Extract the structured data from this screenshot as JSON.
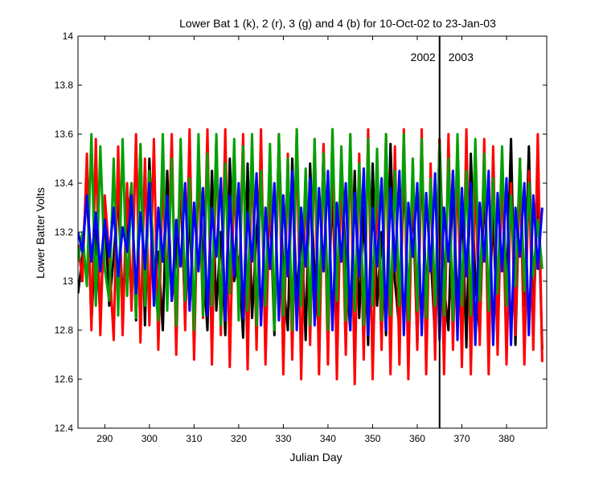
{
  "chart_data": {
    "type": "line",
    "title": "Lower Bat 1 (k), 2 (r), 3 (g) and 4 (b) for 10-Oct-02 to 23-Jan-03",
    "xlabel": "Julian Day",
    "ylabel": "Lower Batter Volts",
    "xlim": [
      284,
      389
    ],
    "ylim": [
      12.4,
      14
    ],
    "x_ticks": [
      290,
      300,
      310,
      320,
      330,
      340,
      350,
      360,
      370,
      380
    ],
    "y_ticks": [
      12.4,
      12.6,
      12.8,
      13,
      13.2,
      13.4,
      13.6,
      13.8,
      14
    ],
    "x_tick_labels": [
      "290",
      "300",
      "310",
      "320",
      "330",
      "340",
      "350",
      "360",
      "370",
      "380"
    ],
    "y_tick_labels": [
      "12.4",
      "12.6",
      "12.8",
      "13",
      "13.2",
      "13.4",
      "13.6",
      "13.8",
      "14"
    ],
    "grid": false,
    "legend": "none",
    "series": [
      {
        "color": "#000000",
        "x": [
          284.0,
          285.0,
          286.0,
          287.0,
          288.0,
          289.0,
          290.0,
          291.0,
          292.0,
          293.0,
          294.0,
          295.0,
          296.0,
          297.0,
          298.0,
          299.0,
          300.0,
          301.0,
          302.0,
          303.0,
          304.0,
          305.0,
          306.0,
          307.0,
          308.0,
          309.0,
          310.0,
          311.0,
          312.0,
          313.0,
          314.0,
          315.0,
          316.0,
          317.0,
          318.0,
          319.0,
          320.0,
          321.0,
          322.0,
          323.0,
          324.0,
          325.0,
          326.0,
          327.0,
          328.0,
          329.0,
          330.0,
          331.0,
          332.0,
          333.0,
          334.0,
          335.0,
          336.0,
          337.0,
          338.0,
          339.0,
          340.0,
          341.0,
          342.0,
          343.0,
          344.0,
          345.0,
          346.0,
          347.0,
          348.0,
          349.0,
          350.0,
          351.0,
          352.0,
          353.0,
          354.0,
          355.0,
          356.0,
          357.0,
          358.0,
          359.0,
          360.0,
          361.0,
          362.0,
          363.0,
          364.0,
          365.0,
          366.0,
          367.0,
          368.0,
          369.0,
          370.0,
          371.0,
          372.0,
          373.0,
          374.0,
          375.0,
          376.0,
          377.0,
          378.0,
          379.0,
          380.0,
          381.0,
          382.0,
          383.0,
          384.0,
          385.0,
          386.0,
          387.0,
          388.0
        ],
        "y": [
          12.95,
          13.1,
          13.42,
          12.83,
          13.21,
          12.85,
          13.3,
          12.9,
          13.1,
          13.35,
          12.92,
          13.18,
          13.4,
          12.84,
          13.55,
          12.82,
          13.5,
          13.05,
          13.12,
          12.8,
          13.45,
          12.92,
          13.1,
          13.38,
          12.85,
          13.3,
          12.78,
          13.52,
          13.08,
          12.8,
          13.45,
          12.88,
          13.2,
          12.78,
          13.5,
          13.0,
          13.1,
          12.77,
          13.48,
          12.85,
          13.2,
          13.45,
          12.82,
          13.35,
          12.78,
          13.58,
          13.0,
          12.8,
          13.5,
          12.9,
          13.25,
          12.76,
          13.48,
          13.02,
          12.78,
          13.55,
          12.86,
          13.38,
          12.77,
          13.52,
          13.05,
          12.8,
          13.45,
          12.85,
          13.3,
          12.74,
          13.48,
          12.9,
          13.2,
          12.78,
          13.56,
          13.0,
          12.8,
          13.45,
          12.9,
          13.35,
          12.74,
          13.5,
          12.95,
          13.12,
          12.76,
          13.58,
          12.98,
          12.8,
          13.45,
          12.86,
          13.32,
          12.73,
          13.52,
          13.0,
          12.78,
          13.4,
          12.84,
          13.28,
          12.75,
          13.5,
          12.95,
          13.58,
          12.74,
          13.46,
          12.9,
          13.55,
          12.8,
          13.4,
          12.72
        ]
      },
      {
        "color": "#ff0000",
        "x": [
          284.0,
          285.0,
          286.0,
          287.0,
          288.0,
          289.0,
          290.0,
          291.0,
          292.0,
          293.0,
          294.0,
          295.0,
          296.0,
          297.0,
          298.0,
          299.0,
          300.0,
          301.0,
          302.0,
          303.0,
          304.0,
          305.0,
          306.0,
          307.0,
          308.0,
          309.0,
          310.0,
          311.0,
          312.0,
          313.0,
          314.0,
          315.0,
          316.0,
          317.0,
          318.0,
          319.0,
          320.0,
          321.0,
          322.0,
          323.0,
          324.0,
          325.0,
          326.0,
          327.0,
          328.0,
          329.0,
          330.0,
          331.0,
          332.0,
          333.0,
          334.0,
          335.0,
          336.0,
          337.0,
          338.0,
          339.0,
          340.0,
          341.0,
          342.0,
          343.0,
          344.0,
          345.0,
          346.0,
          347.0,
          348.0,
          349.0,
          350.0,
          351.0,
          352.0,
          353.0,
          354.0,
          355.0,
          356.0,
          357.0,
          358.0,
          359.0,
          360.0,
          361.0,
          362.0,
          363.0,
          364.0,
          365.0,
          366.0,
          367.0,
          368.0,
          369.0,
          370.0,
          371.0,
          372.0,
          373.0,
          374.0,
          375.0,
          376.0,
          377.0,
          378.0,
          379.0,
          380.0,
          381.0,
          382.0,
          383.0,
          384.0,
          385.0,
          386.0,
          387.0,
          388.0
        ],
        "y": [
          13.15,
          13.0,
          13.52,
          12.8,
          13.58,
          12.78,
          13.35,
          13.1,
          12.76,
          13.55,
          12.78,
          13.4,
          12.88,
          13.6,
          12.75,
          13.5,
          12.82,
          13.58,
          12.72,
          13.42,
          12.95,
          13.6,
          12.7,
          13.55,
          12.8,
          13.62,
          12.68,
          13.5,
          12.85,
          13.62,
          12.66,
          13.58,
          12.78,
          13.62,
          12.65,
          13.45,
          12.9,
          13.6,
          12.64,
          13.55,
          12.72,
          13.62,
          12.66,
          13.4,
          12.82,
          13.6,
          12.62,
          13.52,
          12.68,
          13.62,
          12.6,
          13.45,
          12.74,
          13.58,
          12.62,
          13.56,
          12.66,
          13.62,
          12.6,
          13.48,
          12.7,
          13.6,
          12.58,
          13.52,
          12.68,
          13.62,
          12.6,
          13.42,
          12.72,
          13.6,
          12.62,
          13.55,
          12.66,
          13.62,
          12.6,
          13.5,
          12.72,
          13.62,
          12.62,
          13.48,
          12.68,
          13.58,
          12.62,
          13.6,
          12.72,
          13.5,
          12.65,
          13.62,
          12.62,
          13.45,
          12.74,
          13.58,
          12.62,
          13.55,
          12.7,
          13.48,
          12.66,
          13.4,
          12.78,
          13.5,
          12.66,
          13.45,
          12.72,
          13.6,
          12.67
        ]
      },
      {
        "color": "#00a000",
        "x": [
          284.0,
          285.0,
          286.0,
          287.0,
          288.0,
          289.0,
          290.0,
          291.0,
          292.0,
          293.0,
          294.0,
          295.0,
          296.0,
          297.0,
          298.0,
          299.0,
          300.0,
          301.0,
          302.0,
          303.0,
          304.0,
          305.0,
          306.0,
          307.0,
          308.0,
          309.0,
          310.0,
          311.0,
          312.0,
          313.0,
          314.0,
          315.0,
          316.0,
          317.0,
          318.0,
          319.0,
          320.0,
          321.0,
          322.0,
          323.0,
          324.0,
          325.0,
          326.0,
          327.0,
          328.0,
          329.0,
          330.0,
          331.0,
          332.0,
          333.0,
          334.0,
          335.0,
          336.0,
          337.0,
          338.0,
          339.0,
          340.0,
          341.0,
          342.0,
          343.0,
          344.0,
          345.0,
          346.0,
          347.0,
          348.0,
          349.0,
          350.0,
          351.0,
          352.0,
          353.0,
          354.0,
          355.0,
          356.0,
          357.0,
          358.0,
          359.0,
          360.0,
          361.0,
          362.0,
          363.0,
          364.0,
          365.0,
          366.0,
          367.0,
          368.0,
          369.0,
          370.0,
          371.0,
          372.0,
          373.0,
          374.0,
          375.0,
          376.0,
          377.0,
          378.0,
          379.0,
          380.0,
          381.0,
          382.0,
          383.0,
          384.0,
          385.0,
          386.0,
          387.0,
          388.0
        ],
        "y": [
          13.08,
          13.2,
          12.98,
          13.6,
          12.9,
          13.55,
          13.05,
          12.92,
          13.5,
          12.86,
          13.58,
          12.94,
          13.4,
          12.85,
          13.56,
          12.9,
          13.45,
          13.02,
          12.84,
          13.6,
          12.88,
          13.5,
          12.82,
          13.58,
          12.92,
          13.42,
          12.8,
          13.6,
          12.86,
          13.52,
          12.9,
          13.6,
          12.82,
          13.48,
          12.95,
          13.58,
          12.84,
          13.55,
          12.88,
          13.6,
          12.82,
          13.45,
          12.9,
          13.56,
          12.8,
          13.6,
          12.86,
          13.5,
          12.8,
          13.62,
          12.9,
          13.46,
          12.82,
          13.58,
          12.86,
          13.52,
          12.8,
          13.62,
          12.92,
          13.55,
          12.84,
          13.6,
          12.88,
          13.48,
          12.82,
          13.58,
          12.9,
          13.54,
          12.84,
          13.6,
          12.86,
          13.45,
          12.9,
          13.6,
          12.84,
          13.5,
          12.88,
          13.58,
          12.85,
          13.42,
          12.9,
          13.56,
          12.86,
          13.5,
          12.84,
          13.6,
          12.9,
          13.45,
          12.86,
          13.58,
          12.92,
          13.52,
          12.88,
          13.42,
          12.95,
          13.55,
          12.9,
          13.35,
          12.98,
          13.5,
          12.96,
          13.4,
          13.02,
          13.25,
          13.05
        ]
      },
      {
        "color": "#0000ff",
        "x": [
          284.0,
          285.0,
          286.0,
          287.0,
          288.0,
          289.0,
          290.0,
          291.0,
          292.0,
          293.0,
          294.0,
          295.0,
          296.0,
          297.0,
          298.0,
          299.0,
          300.0,
          301.0,
          302.0,
          303.0,
          304.0,
          305.0,
          306.0,
          307.0,
          308.0,
          309.0,
          310.0,
          311.0,
          312.0,
          313.0,
          314.0,
          315.0,
          316.0,
          317.0,
          318.0,
          319.0,
          320.0,
          321.0,
          322.0,
          323.0,
          324.0,
          325.0,
          326.0,
          327.0,
          328.0,
          329.0,
          330.0,
          331.0,
          332.0,
          333.0,
          334.0,
          335.0,
          336.0,
          337.0,
          338.0,
          339.0,
          340.0,
          341.0,
          342.0,
          343.0,
          344.0,
          345.0,
          346.0,
          347.0,
          348.0,
          349.0,
          350.0,
          351.0,
          352.0,
          353.0,
          354.0,
          355.0,
          356.0,
          357.0,
          358.0,
          359.0,
          360.0,
          361.0,
          362.0,
          363.0,
          364.0,
          365.0,
          366.0,
          367.0,
          368.0,
          369.0,
          370.0,
          371.0,
          372.0,
          373.0,
          374.0,
          375.0,
          376.0,
          377.0,
          378.0,
          379.0,
          380.0,
          381.0,
          382.0,
          383.0,
          384.0,
          385.0,
          386.0,
          387.0,
          388.0
        ],
        "y": [
          13.2,
          13.12,
          13.35,
          13.08,
          13.28,
          13.04,
          13.25,
          13.1,
          13.3,
          13.02,
          13.22,
          13.12,
          13.35,
          12.95,
          13.28,
          13.05,
          13.4,
          12.9,
          13.3,
          13.08,
          13.35,
          12.92,
          13.25,
          13.06,
          13.4,
          12.88,
          13.32,
          13.04,
          13.38,
          12.86,
          13.3,
          13.1,
          13.42,
          12.84,
          13.35,
          13.02,
          13.4,
          12.85,
          13.28,
          13.08,
          13.44,
          12.82,
          13.3,
          13.05,
          13.4,
          12.84,
          13.35,
          13.02,
          13.45,
          12.8,
          13.3,
          13.06,
          13.42,
          12.82,
          13.38,
          13.04,
          13.45,
          12.8,
          13.32,
          13.08,
          13.4,
          12.8,
          13.36,
          13.02,
          13.46,
          12.78,
          13.3,
          13.06,
          13.42,
          12.8,
          13.38,
          13.04,
          13.45,
          12.78,
          13.32,
          13.1,
          13.4,
          12.78,
          13.36,
          13.04,
          13.44,
          12.76,
          13.3,
          13.08,
          13.45,
          12.76,
          13.38,
          13.02,
          13.4,
          12.74,
          13.32,
          13.08,
          13.45,
          12.74,
          13.36,
          13.04,
          13.42,
          12.74,
          13.3,
          13.1,
          13.4,
          12.78,
          13.35,
          13.05,
          13.3
        ]
      }
    ],
    "annotations": [
      {
        "text": "2002",
        "x": 365,
        "side": "left"
      },
      {
        "text": "2003",
        "x": 365,
        "side": "right"
      }
    ],
    "vertical_line_x": 365
  }
}
